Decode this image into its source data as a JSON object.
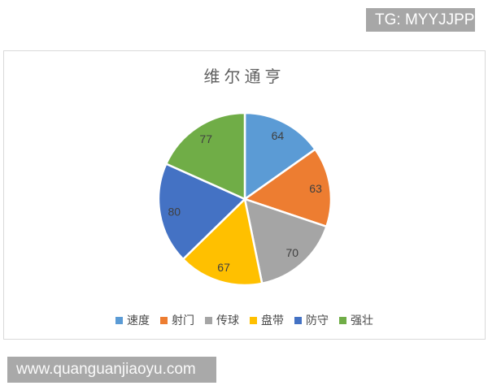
{
  "page": {
    "tg_badge": "TG: MYYJJPP",
    "url_bar": "www.quanguanjiaoyu.com"
  },
  "chart_data": {
    "type": "pie",
    "title": "维尔通亨",
    "categories": [
      "速度",
      "射门",
      "传球",
      "盘带",
      "防守",
      "强壮"
    ],
    "values": [
      64,
      63,
      70,
      67,
      80,
      77
    ],
    "colors": [
      "#5B9BD5",
      "#ED7D31",
      "#A5A5A5",
      "#FFC000",
      "#4472C4",
      "#70AD47"
    ],
    "total": 421,
    "start_angle_deg": 0,
    "direction": "clockwise",
    "data_labels": "inside",
    "data_label_color": "#404040",
    "data_label_font_size": 14,
    "legend_position": "bottom",
    "slice_border_color": "#ffffff",
    "title_color": "#5f5f5f"
  }
}
